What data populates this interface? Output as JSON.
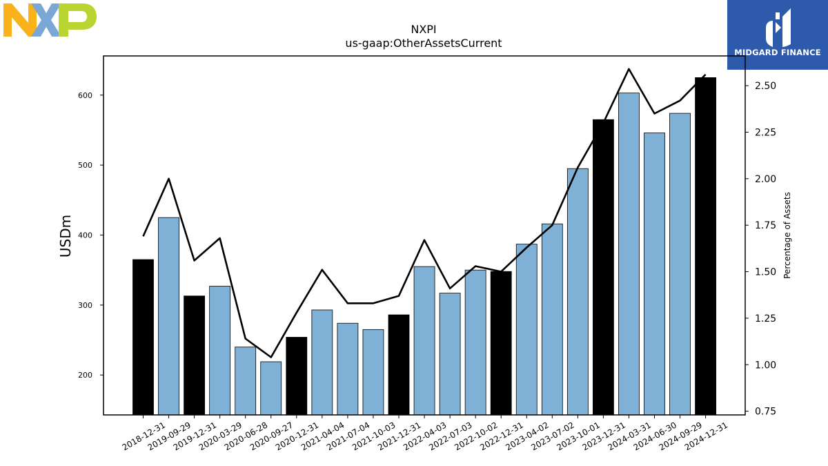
{
  "brand": {
    "logo_letters": "NXP",
    "finance_name": "MIDGARD FINANCE",
    "colors": {
      "nxp_n": "#f9b31a",
      "nxp_x": "#7aa7d6",
      "nxp_p": "#b9d532",
      "finance_bg": "#2d5aab"
    }
  },
  "chart_data": {
    "type": "bar",
    "title": "NXPI",
    "subtitle": "us-gaap:OtherAssetsCurrent",
    "ylabel": "USDm",
    "y2label": "Percentage of Assets",
    "ylim": [
      143,
      656
    ],
    "y2lim": [
      0.73,
      2.66
    ],
    "yticks": [
      200,
      300,
      400,
      500,
      600
    ],
    "y2ticks": [
      0.75,
      1.0,
      1.25,
      1.5,
      1.75,
      2.0,
      2.25,
      2.5
    ],
    "y2tick_labels": [
      "0.75",
      "1.00",
      "1.25",
      "1.50",
      "1.75",
      "2.00",
      "2.25",
      "2.50"
    ],
    "categories": [
      "2018-12-31",
      "2019-09-29",
      "2019-12-31",
      "2020-03-29",
      "2020-06-28",
      "2020-09-27",
      "2020-12-31",
      "2021-04-04",
      "2021-07-04",
      "2021-10-03",
      "2021-12-31",
      "2022-04-03",
      "2022-07-03",
      "2022-10-02",
      "2022-12-31",
      "2023-04-02",
      "2023-07-02",
      "2023-10-01",
      "2023-12-31",
      "2024-03-31",
      "2024-06-30",
      "2024-09-29",
      "2024-12-31"
    ],
    "values": [
      365,
      425,
      313,
      327,
      240,
      219,
      254,
      293,
      274,
      265,
      286,
      355,
      317,
      350,
      348,
      387,
      416,
      495,
      565,
      603,
      546,
      574,
      625
    ],
    "annual": [
      true,
      false,
      true,
      false,
      false,
      false,
      true,
      false,
      false,
      false,
      true,
      false,
      false,
      false,
      true,
      false,
      false,
      false,
      true,
      false,
      false,
      false,
      true
    ],
    "line": {
      "values": [
        1.69,
        2.0,
        1.56,
        1.68,
        1.14,
        1.04,
        1.28,
        1.51,
        1.33,
        1.33,
        1.37,
        1.67,
        1.41,
        1.53,
        1.5,
        1.63,
        1.75,
        2.06,
        2.3,
        2.59,
        2.35,
        2.42,
        2.56
      ]
    },
    "colors": {
      "annual_bar": "#000000",
      "quarter_bar": "#7fb0d5",
      "line": "#000000"
    },
    "grid": false,
    "legend": "none"
  }
}
